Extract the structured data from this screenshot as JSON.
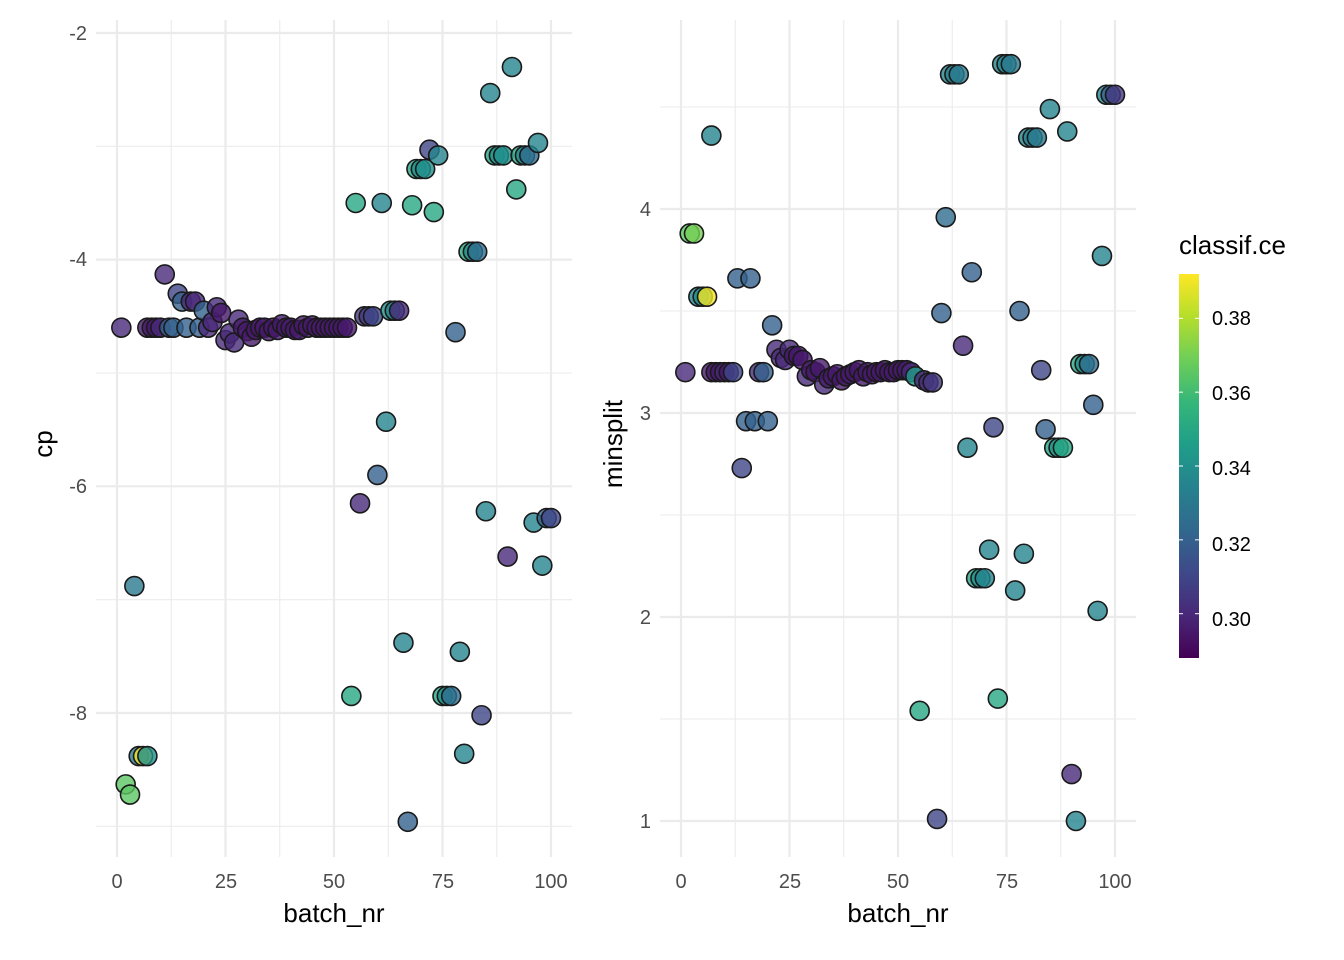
{
  "chart_data": [
    {
      "type": "scatter",
      "panel": "left",
      "xlabel": "batch_nr",
      "ylabel": "cp",
      "xlim": [
        -1,
        105
      ],
      "ylim": [
        -9.2,
        -2
      ],
      "x_ticks": [
        0,
        25,
        50,
        75,
        100
      ],
      "x_tick_labels": [
        "0",
        "25",
        "50",
        "75",
        "100"
      ],
      "y_ticks": [
        -2,
        -4,
        -6,
        -8
      ],
      "y_tick_labels": [
        "-2",
        "-4",
        "-6",
        "-8"
      ],
      "grid": true,
      "color_variable": "classif.ce",
      "points": [
        [
          1,
          -4.6,
          0.3
        ],
        [
          2,
          -8.63,
          0.365
        ],
        [
          3,
          -8.72,
          0.365
        ],
        [
          4,
          -6.88,
          0.33
        ],
        [
          5,
          -8.38,
          0.33
        ],
        [
          6,
          -8.38,
          0.39
        ],
        [
          7,
          -8.38,
          0.34
        ],
        [
          7,
          -4.6,
          0.295
        ],
        [
          8,
          -4.6,
          0.295
        ],
        [
          9,
          -4.6,
          0.295
        ],
        [
          10,
          -4.6,
          0.3
        ],
        [
          11,
          -4.13,
          0.3
        ],
        [
          12,
          -4.6,
          0.32
        ],
        [
          13,
          -4.6,
          0.32
        ],
        [
          14,
          -4.3,
          0.31
        ],
        [
          15,
          -4.37,
          0.32
        ],
        [
          16,
          -4.6,
          0.32
        ],
        [
          17,
          -4.37,
          0.3
        ],
        [
          18,
          -4.37,
          0.3
        ],
        [
          19,
          -4.6,
          0.32
        ],
        [
          20,
          -4.45,
          0.32
        ],
        [
          21,
          -4.6,
          0.3
        ],
        [
          22,
          -4.55,
          0.3
        ],
        [
          23,
          -4.42,
          0.3
        ],
        [
          24,
          -4.47,
          0.295
        ],
        [
          25,
          -4.71,
          0.3
        ],
        [
          26,
          -4.65,
          0.3
        ],
        [
          27,
          -4.73,
          0.3
        ],
        [
          28,
          -4.53,
          0.3
        ],
        [
          29,
          -4.6,
          0.295
        ],
        [
          30,
          -4.63,
          0.295
        ],
        [
          31,
          -4.68,
          0.295
        ],
        [
          32,
          -4.62,
          0.295
        ],
        [
          33,
          -4.6,
          0.295
        ],
        [
          34,
          -4.6,
          0.295
        ],
        [
          35,
          -4.63,
          0.295
        ],
        [
          36,
          -4.6,
          0.295
        ],
        [
          37,
          -4.62,
          0.295
        ],
        [
          38,
          -4.57,
          0.295
        ],
        [
          39,
          -4.6,
          0.295
        ],
        [
          40,
          -4.6,
          0.295
        ],
        [
          41,
          -4.62,
          0.295
        ],
        [
          42,
          -4.62,
          0.295
        ],
        [
          43,
          -4.58,
          0.295
        ],
        [
          44,
          -4.6,
          0.295
        ],
        [
          45,
          -4.58,
          0.295
        ],
        [
          46,
          -4.6,
          0.295
        ],
        [
          47,
          -4.6,
          0.295
        ],
        [
          48,
          -4.6,
          0.295
        ],
        [
          49,
          -4.6,
          0.295
        ],
        [
          50,
          -4.6,
          0.295
        ],
        [
          51,
          -4.6,
          0.295
        ],
        [
          52,
          -4.6,
          0.295
        ],
        [
          53,
          -4.6,
          0.295
        ],
        [
          54,
          -7.85,
          0.35
        ],
        [
          55,
          -3.5,
          0.35
        ],
        [
          56,
          -6.15,
          0.3
        ],
        [
          57,
          -4.5,
          0.305
        ],
        [
          58,
          -4.5,
          0.305
        ],
        [
          59,
          -4.5,
          0.31
        ],
        [
          60,
          -5.9,
          0.32
        ],
        [
          61,
          -3.5,
          0.335
        ],
        [
          62,
          -5.43,
          0.335
        ],
        [
          63,
          -4.45,
          0.34
        ],
        [
          64,
          -4.45,
          0.335
        ],
        [
          65,
          -4.45,
          0.3
        ],
        [
          66,
          -7.38,
          0.335
        ],
        [
          67,
          -8.96,
          0.32
        ],
        [
          68,
          -3.52,
          0.35
        ],
        [
          69,
          -3.2,
          0.35
        ],
        [
          70,
          -3.2,
          0.34
        ],
        [
          71,
          -3.2,
          0.34
        ],
        [
          72,
          -3.03,
          0.31
        ],
        [
          73,
          -3.58,
          0.35
        ],
        [
          74,
          -3.08,
          0.335
        ],
        [
          75,
          -7.85,
          0.35
        ],
        [
          76,
          -7.85,
          0.34
        ],
        [
          77,
          -7.85,
          0.325
        ],
        [
          78,
          -4.64,
          0.32
        ],
        [
          79,
          -7.46,
          0.335
        ],
        [
          80,
          -8.36,
          0.335
        ],
        [
          81,
          -3.93,
          0.35
        ],
        [
          82,
          -3.93,
          0.34
        ],
        [
          83,
          -3.93,
          0.325
        ],
        [
          84,
          -8.02,
          0.31
        ],
        [
          85,
          -6.22,
          0.335
        ],
        [
          86,
          -2.53,
          0.335
        ],
        [
          87,
          -3.08,
          0.35
        ],
        [
          88,
          -3.08,
          0.34
        ],
        [
          89,
          -3.08,
          0.34
        ],
        [
          90,
          -6.62,
          0.3
        ],
        [
          91,
          -2.3,
          0.335
        ],
        [
          92,
          -3.38,
          0.35
        ],
        [
          93,
          -3.08,
          0.35
        ],
        [
          94,
          -3.08,
          0.335
        ],
        [
          95,
          -3.08,
          0.325
        ],
        [
          96,
          -6.32,
          0.335
        ],
        [
          97,
          -2.97,
          0.335
        ],
        [
          98,
          -6.7,
          0.335
        ],
        [
          99,
          -6.28,
          0.32
        ],
        [
          100,
          -6.28,
          0.31
        ]
      ]
    },
    {
      "type": "scatter",
      "panel": "right",
      "xlabel": "batch_nr",
      "ylabel": "minsplit",
      "xlim": [
        -1,
        105
      ],
      "ylim": [
        0.9,
        4.85
      ],
      "x_ticks": [
        0,
        25,
        50,
        75,
        100
      ],
      "x_tick_labels": [
        "0",
        "25",
        "50",
        "75",
        "100"
      ],
      "y_ticks": [
        1,
        2,
        3,
        4
      ],
      "y_tick_labels": [
        "1",
        "2",
        "3",
        "4"
      ],
      "grid": true,
      "color_variable": "classif.ce",
      "points": [
        [
          1,
          3.2,
          0.3
        ],
        [
          2,
          3.88,
          0.365
        ],
        [
          3,
          3.88,
          0.37
        ],
        [
          4,
          3.57,
          0.335
        ],
        [
          5,
          3.57,
          0.34
        ],
        [
          6,
          3.57,
          0.39
        ],
        [
          7,
          4.36,
          0.335
        ],
        [
          7,
          3.2,
          0.295
        ],
        [
          8,
          3.2,
          0.295
        ],
        [
          9,
          3.2,
          0.295
        ],
        [
          10,
          3.2,
          0.3
        ],
        [
          11,
          3.2,
          0.295
        ],
        [
          12,
          3.2,
          0.31
        ],
        [
          13,
          3.66,
          0.32
        ],
        [
          14,
          2.73,
          0.31
        ],
        [
          15,
          2.96,
          0.32
        ],
        [
          16,
          3.66,
          0.32
        ],
        [
          17,
          2.96,
          0.32
        ],
        [
          18,
          3.2,
          0.3
        ],
        [
          19,
          3.2,
          0.32
        ],
        [
          20,
          2.96,
          0.32
        ],
        [
          21,
          3.43,
          0.32
        ],
        [
          22,
          3.31,
          0.3
        ],
        [
          23,
          3.27,
          0.3
        ],
        [
          24,
          3.26,
          0.3
        ],
        [
          25,
          3.31,
          0.3
        ],
        [
          26,
          3.28,
          0.295
        ],
        [
          27,
          3.28,
          0.295
        ],
        [
          28,
          3.26,
          0.295
        ],
        [
          29,
          3.18,
          0.3
        ],
        [
          30,
          3.21,
          0.295
        ],
        [
          31,
          3.2,
          0.295
        ],
        [
          32,
          3.22,
          0.295
        ],
        [
          33,
          3.14,
          0.3
        ],
        [
          34,
          3.17,
          0.295
        ],
        [
          35,
          3.18,
          0.295
        ],
        [
          36,
          3.19,
          0.295
        ],
        [
          37,
          3.16,
          0.295
        ],
        [
          38,
          3.18,
          0.295
        ],
        [
          39,
          3.19,
          0.295
        ],
        [
          40,
          3.2,
          0.295
        ],
        [
          41,
          3.21,
          0.295
        ],
        [
          42,
          3.18,
          0.295
        ],
        [
          43,
          3.2,
          0.295
        ],
        [
          44,
          3.19,
          0.295
        ],
        [
          45,
          3.2,
          0.295
        ],
        [
          46,
          3.2,
          0.295
        ],
        [
          47,
          3.21,
          0.295
        ],
        [
          48,
          3.2,
          0.295
        ],
        [
          49,
          3.2,
          0.295
        ],
        [
          50,
          3.21,
          0.295
        ],
        [
          51,
          3.21,
          0.295
        ],
        [
          52,
          3.21,
          0.295
        ],
        [
          53,
          3.2,
          0.3
        ],
        [
          54,
          3.18,
          0.345
        ],
        [
          55,
          1.54,
          0.35
        ],
        [
          56,
          3.16,
          0.3
        ],
        [
          57,
          3.15,
          0.3
        ],
        [
          58,
          3.15,
          0.305
        ],
        [
          59,
          1.01,
          0.31
        ],
        [
          60,
          3.49,
          0.32
        ],
        [
          61,
          3.96,
          0.325
        ],
        [
          62,
          4.66,
          0.335
        ],
        [
          63,
          4.66,
          0.335
        ],
        [
          64,
          4.66,
          0.33
        ],
        [
          65,
          3.33,
          0.3
        ],
        [
          66,
          2.83,
          0.335
        ],
        [
          67,
          3.69,
          0.32
        ],
        [
          68,
          2.19,
          0.35
        ],
        [
          69,
          2.19,
          0.34
        ],
        [
          70,
          2.19,
          0.335
        ],
        [
          71,
          2.33,
          0.335
        ],
        [
          72,
          2.93,
          0.31
        ],
        [
          73,
          1.6,
          0.35
        ],
        [
          74,
          4.71,
          0.335
        ],
        [
          75,
          4.71,
          0.335
        ],
        [
          76,
          4.71,
          0.33
        ],
        [
          77,
          2.13,
          0.335
        ],
        [
          78,
          3.5,
          0.32
        ],
        [
          79,
          2.31,
          0.335
        ],
        [
          80,
          4.35,
          0.335
        ],
        [
          81,
          4.35,
          0.335
        ],
        [
          82,
          4.35,
          0.33
        ],
        [
          83,
          3.21,
          0.31
        ],
        [
          84,
          2.92,
          0.32
        ],
        [
          85,
          4.49,
          0.335
        ],
        [
          86,
          2.83,
          0.35
        ],
        [
          87,
          2.83,
          0.34
        ],
        [
          88,
          2.83,
          0.35
        ],
        [
          89,
          4.38,
          0.335
        ],
        [
          90,
          1.23,
          0.3
        ],
        [
          91,
          1.0,
          0.335
        ],
        [
          92,
          3.24,
          0.35
        ],
        [
          93,
          3.24,
          0.34
        ],
        [
          94,
          3.24,
          0.325
        ],
        [
          95,
          3.04,
          0.32
        ],
        [
          96,
          2.03,
          0.335
        ],
        [
          97,
          3.77,
          0.335
        ],
        [
          98,
          4.56,
          0.335
        ],
        [
          99,
          4.56,
          0.32
        ],
        [
          100,
          4.56,
          0.305
        ]
      ]
    }
  ],
  "legend": {
    "title": "classif.ce",
    "placement": "right",
    "range": [
      0.288,
      0.392
    ],
    "breaks": [
      0.3,
      0.32,
      0.34,
      0.36,
      0.38
    ],
    "break_labels": [
      "0.30",
      "0.32",
      "0.34",
      "0.36",
      "0.38"
    ],
    "palette": "viridis"
  },
  "colors": {
    "grid": "#ebebeb",
    "tick_text": "#4d4d4d",
    "point_stroke": "#1a1a1a",
    "viridis_stops": [
      "#440154",
      "#482878",
      "#3e4989",
      "#31688e",
      "#26828e",
      "#1f9e89",
      "#35b779",
      "#6ece58",
      "#b5de2b",
      "#fde725"
    ]
  }
}
